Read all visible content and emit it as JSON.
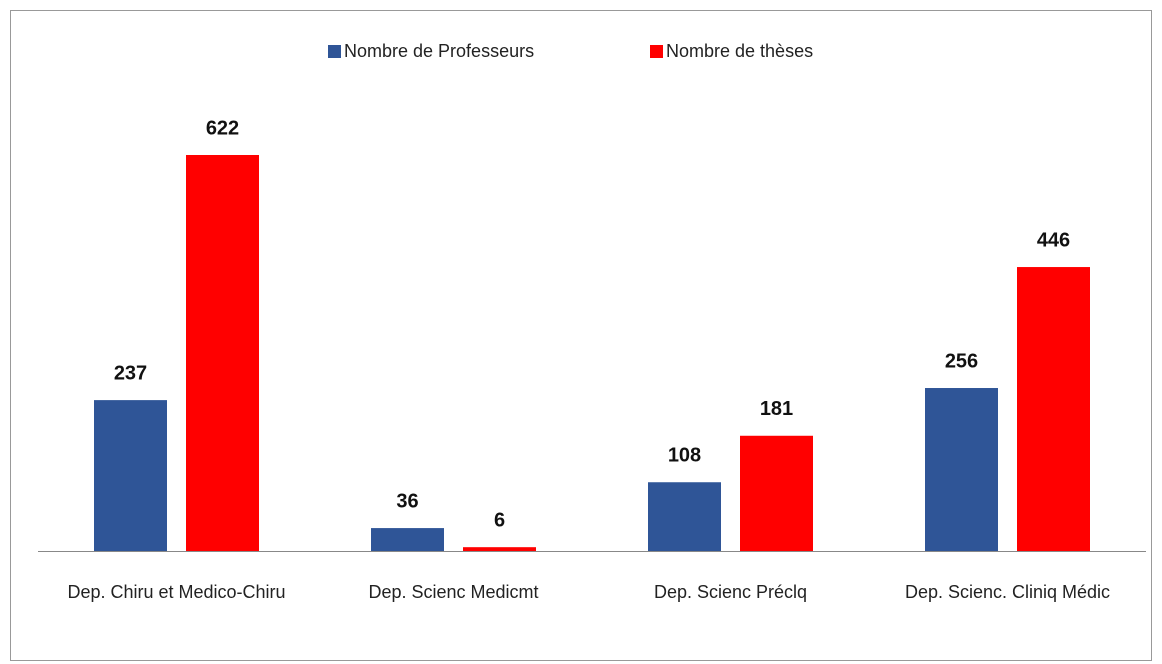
{
  "chart_data": {
    "type": "bar",
    "categories": [
      "Dep. Chiru et Medico-Chiru",
      "Dep. Scienc Medicmt",
      "Dep. Scienc Préclq",
      "Dep. Scienc. Cliniq Médic"
    ],
    "series": [
      {
        "name": "Nombre de Professeurs",
        "color": "#2f5597",
        "values": [
          237,
          36,
          108,
          256
        ]
      },
      {
        "name": "Nombre de thèses",
        "color": "#ff0000",
        "values": [
          622,
          6,
          181,
          446
        ]
      }
    ],
    "legend": "top"
  }
}
